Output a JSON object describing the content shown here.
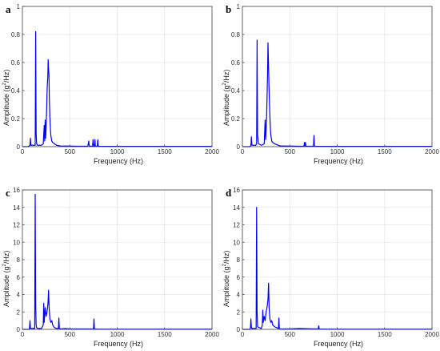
{
  "chart_data": [
    {
      "type": "line",
      "panel_label": "a",
      "xlabel": "Frequency (Hz)",
      "ylabel_prefix": "Amplitude (g",
      "ylabel_sup": "2",
      "ylabel_suffix": "/Hz)",
      "xlim": [
        0,
        2000
      ],
      "ylim": [
        0,
        1
      ],
      "xticks": [
        0,
        500,
        1000,
        1500,
        2000
      ],
      "yticks": [
        0,
        0.2,
        0.4,
        0.6,
        0.8,
        1
      ],
      "ytick_labels": [
        "0",
        "0.2",
        "0.4",
        "0.6",
        "0.8",
        "1"
      ],
      "grid": true,
      "color": "#0000ff",
      "series": [
        {
          "x": [
            0,
            60,
            80,
            85,
            90,
            120,
            135,
            140,
            145,
            150,
            160,
            200,
            220,
            230,
            235,
            240,
            245,
            250,
            255,
            262,
            268,
            272,
            276,
            280,
            284,
            288,
            292,
            296,
            300,
            305,
            310,
            320,
            340,
            360,
            400,
            600,
            690,
            700,
            705,
            720,
            740,
            745,
            750,
            760,
            765,
            770,
            790,
            795,
            800,
            820,
            1000,
            2000
          ],
          "y": [
            0,
            0,
            0.01,
            0.06,
            0.01,
            0.01,
            0.01,
            0.82,
            0.1,
            0.02,
            0.01,
            0.01,
            0.02,
            0.15,
            0.04,
            0.19,
            0.06,
            0.13,
            0.25,
            0.43,
            0.5,
            0.62,
            0.55,
            0.52,
            0.35,
            0.25,
            0.18,
            0.12,
            0.08,
            0.06,
            0.04,
            0.03,
            0.02,
            0.01,
            0.005,
            0.003,
            0.003,
            0.04,
            0.005,
            0.003,
            0.003,
            0.05,
            0.003,
            0.003,
            0.05,
            0.003,
            0.003,
            0.05,
            0.003,
            0.002,
            0.002,
            0.002
          ]
        }
      ]
    },
    {
      "type": "line",
      "panel_label": "b",
      "xlabel": "Frequency (Hz)",
      "ylabel_prefix": "Amplitude (g",
      "ylabel_sup": "2",
      "ylabel_suffix": "/Hz)",
      "xlim": [
        0,
        2000
      ],
      "ylim": [
        0,
        1
      ],
      "xticks": [
        0,
        500,
        1000,
        1500,
        2000
      ],
      "yticks": [
        0,
        0.2,
        0.4,
        0.6,
        0.8,
        1
      ],
      "ytick_labels": [
        "0",
        "0.2",
        "0.4",
        "0.6",
        "0.8",
        "1"
      ],
      "grid": true,
      "color": "#0000ff",
      "series": [
        {
          "x": [
            0,
            80,
            90,
            95,
            100,
            140,
            150,
            155,
            160,
            170,
            200,
            230,
            240,
            245,
            250,
            255,
            260,
            265,
            270,
            275,
            280,
            284,
            288,
            292,
            296,
            300,
            305,
            310,
            320,
            340,
            400,
            600,
            650,
            655,
            660,
            665,
            670,
            700,
            750,
            755,
            760,
            800,
            1000,
            2000
          ],
          "y": [
            0,
            0,
            0.01,
            0.07,
            0.01,
            0.01,
            0.02,
            0.76,
            0.08,
            0.02,
            0.01,
            0.02,
            0.19,
            0.05,
            0.12,
            0.2,
            0.35,
            0.5,
            0.74,
            0.6,
            0.45,
            0.35,
            0.25,
            0.18,
            0.12,
            0.08,
            0.06,
            0.04,
            0.03,
            0.02,
            0.005,
            0.003,
            0.003,
            0.03,
            0.003,
            0.03,
            0.003,
            0.003,
            0.003,
            0.08,
            0.003,
            0.002,
            0.002,
            0.002
          ]
        }
      ]
    },
    {
      "type": "line",
      "panel_label": "c",
      "xlabel": "Frequency (Hz)",
      "ylabel_prefix": "Amplitude (g",
      "ylabel_sup": "2",
      "ylabel_suffix": "/Hz)",
      "xlim": [
        0,
        2000
      ],
      "ylim": [
        0,
        16
      ],
      "xticks": [
        0,
        500,
        1000,
        1500,
        2000
      ],
      "yticks": [
        0,
        2,
        4,
        6,
        8,
        10,
        12,
        14,
        16
      ],
      "ytick_labels": [
        "0",
        "2",
        "4",
        "6",
        "8",
        "10",
        "12",
        "14",
        "16"
      ],
      "grid": true,
      "color": "#0000ff",
      "series": [
        {
          "x": [
            0,
            70,
            75,
            80,
            85,
            100,
            130,
            135,
            140,
            145,
            150,
            160,
            200,
            220,
            225,
            230,
            240,
            250,
            260,
            270,
            276,
            282,
            290,
            300,
            310,
            320,
            330,
            340,
            360,
            380,
            385,
            390,
            400,
            450,
            500,
            600,
            750,
            755,
            760,
            800,
            1000,
            2000
          ],
          "y": [
            0,
            0,
            0.2,
            1.0,
            0.1,
            0.1,
            0.1,
            15.5,
            3.0,
            0.5,
            0.2,
            0.1,
            0.1,
            0.5,
            3.0,
            0.8,
            2.5,
            1.5,
            2.0,
            3.0,
            4.5,
            2.5,
            1.2,
            0.8,
            1.0,
            0.5,
            0.3,
            0.2,
            0.1,
            0.1,
            1.3,
            0.1,
            0.05,
            0.1,
            0.05,
            0.05,
            0.05,
            1.2,
            0.05,
            0.02,
            0.02,
            0.02
          ]
        }
      ]
    },
    {
      "type": "line",
      "panel_label": "d",
      "xlabel": "Frequency (Hz)",
      "ylabel_prefix": "Amplitude (g",
      "ylabel_sup": "2",
      "ylabel_suffix": "/Hz)",
      "xlim": [
        0,
        2000
      ],
      "ylim": [
        0,
        16
      ],
      "xticks": [
        0,
        500,
        1000,
        1500,
        2000
      ],
      "yticks": [
        0,
        2,
        4,
        6,
        8,
        10,
        12,
        14,
        16
      ],
      "ytick_labels": [
        "0",
        "2",
        "4",
        "6",
        "8",
        "10",
        "12",
        "14",
        "16"
      ],
      "grid": true,
      "color": "#0000ff",
      "series": [
        {
          "x": [
            0,
            80,
            85,
            90,
            95,
            100,
            140,
            145,
            150,
            155,
            160,
            200,
            210,
            215,
            220,
            230,
            240,
            250,
            260,
            270,
            276,
            282,
            290,
            300,
            310,
            320,
            340,
            360,
            380,
            385,
            390,
            400,
            500,
            600,
            800,
            805,
            810,
            900,
            1000,
            2000
          ],
          "y": [
            0,
            0,
            0.2,
            1.2,
            0.2,
            0.1,
            0.1,
            0.1,
            14.0,
            2.0,
            0.3,
            0.1,
            0.5,
            2.2,
            0.8,
            1.5,
            1.0,
            2.0,
            2.5,
            3.5,
            5.3,
            2.5,
            1.2,
            0.8,
            1.0,
            0.5,
            0.3,
            0.2,
            0.1,
            1.3,
            0.1,
            0.05,
            0.05,
            0.1,
            0.05,
            0.4,
            0.05,
            0.02,
            0.02,
            0.02
          ]
        }
      ]
    }
  ]
}
